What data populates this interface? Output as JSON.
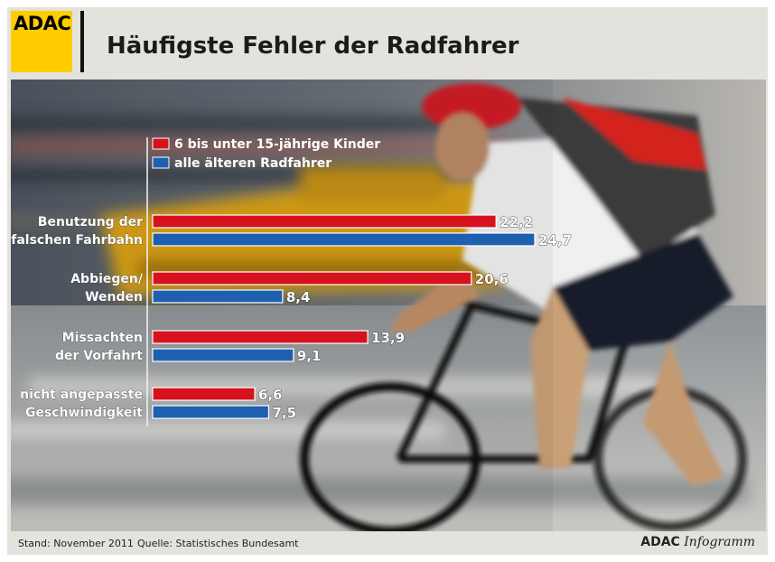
{
  "header": {
    "logo_text": "ADAC",
    "title": "Häufigste Fehler der Radfahrer"
  },
  "footer": {
    "stand": "Stand: November 2011",
    "quelle": "Quelle: Statistisches Bundesamt",
    "brand_bold": "ADAC",
    "brand_italic": "Infogramm"
  },
  "colors": {
    "brand_yellow": "#ffcc00",
    "series_kids": "#d6121e",
    "series_adults": "#1f5fb0"
  },
  "chart_data": {
    "type": "bar",
    "orientation": "horizontal",
    "categories": [
      [
        "Benutzung der",
        "falschen Fahrbahn"
      ],
      [
        "Abbiegen/",
        "Wenden"
      ],
      [
        "Missachten",
        "der Vorfahrt"
      ],
      [
        "nicht angepasste",
        "Geschwindigkeit"
      ]
    ],
    "series": [
      {
        "name": "6 bis unter 15-jährige Kinder",
        "values": [
          22.2,
          20.6,
          13.9,
          6.6
        ],
        "labels": [
          "22,2",
          "20,6",
          "13,9",
          "6,6"
        ],
        "color": "#d6121e"
      },
      {
        "name": "alle älteren Radfahrer",
        "values": [
          24.7,
          8.4,
          9.1,
          7.5
        ],
        "labels": [
          "24,7",
          "8,4",
          "9,1",
          "7,5"
        ],
        "color": "#1f5fb0"
      }
    ],
    "xlim": [
      0,
      30
    ],
    "legend_position": "top-left",
    "grid": false
  }
}
